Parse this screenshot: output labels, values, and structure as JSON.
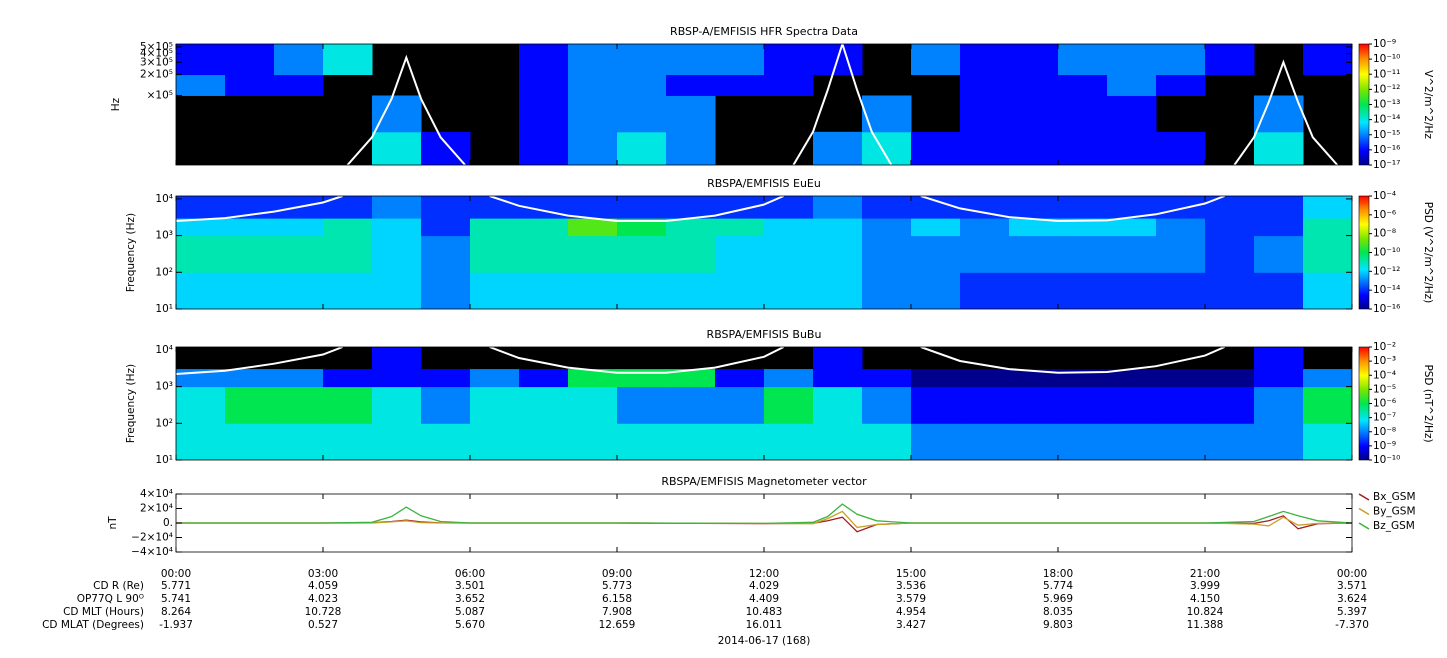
{
  "chart_data": [
    {
      "type": "heatmap",
      "title": "RBSP-A/EMFISIS  HFR Spectra Data",
      "ylabel": "Hz",
      "zlabel": "V^2/m^2/Hz",
      "xlim": [
        0,
        24
      ],
      "xticks": [
        0,
        3,
        6,
        9,
        12,
        15,
        18,
        21,
        24
      ],
      "log_y": true,
      "ylim": [
        10000,
        550000
      ],
      "yticks": [
        {
          "value": 100000,
          "label": "×10⁵"
        },
        {
          "value": 200000,
          "label": "2×10⁵"
        },
        {
          "value": 300000,
          "label": "3×10⁵"
        },
        {
          "value": 400000,
          "label": "4×10⁵"
        },
        {
          "value": 500000,
          "label": "5×10⁵"
        }
      ],
      "log_z": true,
      "zlim": [
        1e-17,
        1e-09
      ],
      "zticks": [
        {
          "value": 1e-17,
          "label": "10⁻¹⁷"
        },
        {
          "value": 1e-16,
          "label": "10⁻¹⁶"
        },
        {
          "value": 1e-15,
          "label": "10⁻¹⁵"
        },
        {
          "value": 1e-14,
          "label": "10⁻¹⁴"
        },
        {
          "value": 1e-13,
          "label": "10⁻¹³"
        },
        {
          "value": 1e-12,
          "label": "10⁻¹²"
        },
        {
          "value": 1e-11,
          "label": "10⁻¹¹"
        },
        {
          "value": 1e-10,
          "label": "10⁻¹⁰"
        },
        {
          "value": 1e-09,
          "label": "10⁻⁹"
        }
      ],
      "ybins": [
        10000,
        30000,
        100000,
        200000,
        550000
      ],
      "z": [
        [
          null,
          null,
          null,
          null,
          1e-14,
          1e-16,
          null,
          1e-16,
          1e-15,
          1e-14,
          1e-15,
          null,
          null,
          1e-15,
          1e-14,
          1e-16,
          1e-16,
          1e-16,
          1e-16,
          1e-16,
          1e-16,
          null,
          1e-14,
          null
        ],
        [
          null,
          null,
          null,
          null,
          1e-15,
          null,
          null,
          1e-16,
          1e-15,
          1e-15,
          1e-15,
          null,
          null,
          null,
          1e-15,
          null,
          1e-16,
          1e-16,
          1e-16,
          1e-16,
          null,
          null,
          1e-15,
          null
        ],
        [
          1e-15,
          1e-16,
          1e-16,
          null,
          null,
          null,
          null,
          1e-16,
          1e-15,
          1e-15,
          1e-16,
          1e-16,
          1e-16,
          null,
          null,
          null,
          1e-16,
          1e-16,
          1e-16,
          1e-15,
          1e-16,
          null,
          null,
          null
        ],
        [
          1e-16,
          1e-16,
          1e-15,
          1e-14,
          null,
          null,
          null,
          1e-16,
          1e-15,
          1e-15,
          1e-15,
          1e-15,
          1e-16,
          1e-16,
          null,
          1e-15,
          1e-16,
          1e-16,
          1e-15,
          1e-15,
          1e-15,
          1e-16,
          null,
          1e-16
        ]
      ],
      "curve": {
        "color": "#ffffff",
        "x": [
          3.5,
          4,
          4.4,
          4.7,
          5,
          5.4,
          5.9,
          null,
          12.6,
          13,
          13.3,
          13.6,
          13.9,
          14.2,
          14.6,
          null,
          21.6,
          22,
          22.3,
          22.6,
          22.9,
          23.2,
          23.7
        ],
        "values": [
          10000,
          25000,
          90000,
          350000,
          90000,
          25000,
          10000,
          null,
          10000,
          30000,
          120000,
          550000,
          120000,
          30000,
          10000,
          null,
          10000,
          25000,
          80000,
          300000,
          80000,
          25000,
          10000
        ]
      }
    },
    {
      "type": "heatmap",
      "title": "RBSPA/EMFISIS  EuEu",
      "ylabel": "Frequency (Hz)",
      "zlabel": "PSD (V^2/m^2/Hz)",
      "xlim": [
        0,
        24
      ],
      "xticks": [
        0,
        3,
        6,
        9,
        12,
        15,
        18,
        21,
        24
      ],
      "log_y": true,
      "ylim": [
        10,
        12000
      ],
      "yticks": [
        {
          "value": 10,
          "label": "10¹"
        },
        {
          "value": 100,
          "label": "10²"
        },
        {
          "value": 1000,
          "label": "10³"
        },
        {
          "value": 10000,
          "label": "10⁴"
        }
      ],
      "log_z": true,
      "zlim": [
        1e-16,
        0.0001
      ],
      "zticks": [
        {
          "value": 1e-16,
          "label": "10⁻¹⁶"
        },
        {
          "value": 1e-14,
          "label": "10⁻¹⁴"
        },
        {
          "value": 1e-12,
          "label": "10⁻¹²"
        },
        {
          "value": 1e-10,
          "label": "10⁻¹⁰"
        },
        {
          "value": 1e-08,
          "label": "10⁻⁸"
        },
        {
          "value": 1e-06,
          "label": "10⁻⁶"
        },
        {
          "value": 0.0001,
          "label": "10⁻⁴"
        }
      ],
      "ybins": [
        10,
        100,
        1000,
        3000,
        12000
      ],
      "z": [
        [
          1e-12,
          1e-12,
          1e-12,
          1e-12,
          1e-12,
          1e-13,
          1e-12,
          1e-12,
          1e-12,
          1e-12,
          1e-12,
          1e-12,
          1e-12,
          1e-12,
          1e-13,
          1e-13,
          1e-14,
          1e-14,
          1e-14,
          1e-14,
          1e-14,
          1e-14,
          1e-14,
          1e-12
        ],
        [
          1e-11,
          1e-11,
          1e-11,
          1e-11,
          1e-12,
          1e-13,
          1e-11,
          1e-11,
          1e-11,
          1e-11,
          1e-11,
          1e-12,
          1e-12,
          1e-12,
          1e-13,
          1e-13,
          1e-13,
          1e-13,
          1e-13,
          1e-13,
          1e-13,
          1e-14,
          1e-13,
          1e-11
        ],
        [
          1e-12,
          1e-12,
          1e-12,
          1e-11,
          1e-12,
          1e-14,
          1e-11,
          1e-11,
          1e-09,
          1e-10,
          1e-11,
          1e-11,
          1e-12,
          1e-12,
          1e-13,
          1e-12,
          1e-13,
          1e-12,
          1e-12,
          1e-12,
          1e-13,
          1e-14,
          1e-14,
          1e-11
        ],
        [
          1e-14,
          1e-14,
          1e-14,
          1e-14,
          1e-13,
          1e-14,
          1e-14,
          1e-14,
          1e-14,
          1e-14,
          1e-14,
          1e-14,
          1e-14,
          1e-13,
          1e-14,
          1e-14,
          1e-14,
          1e-14,
          1e-14,
          1e-14,
          1e-14,
          1e-14,
          1e-14,
          1e-12
        ]
      ],
      "curve": {
        "color": "#ffffff",
        "x": [
          0,
          1,
          2,
          3,
          3.4,
          null,
          6.4,
          7,
          8,
          9,
          10,
          11,
          12,
          12.4,
          null,
          15.2,
          16,
          17,
          18,
          19,
          20,
          21,
          21.4
        ],
        "values": [
          2500,
          3000,
          4500,
          8000,
          12000,
          null,
          12000,
          6500,
          3500,
          2500,
          2500,
          3500,
          7000,
          12000,
          null,
          12000,
          5500,
          3200,
          2500,
          2600,
          3800,
          7500,
          12000
        ]
      }
    },
    {
      "type": "heatmap",
      "title": "RBSPA/EMFISIS  BuBu",
      "ylabel": "Frequency (Hz)",
      "zlabel": "PSD (nT^2/Hz)",
      "xlim": [
        0,
        24
      ],
      "xticks": [
        0,
        3,
        6,
        9,
        12,
        15,
        18,
        21,
        24
      ],
      "log_y": true,
      "ylim": [
        10,
        12000
      ],
      "yticks": [
        {
          "value": 10,
          "label": "10¹"
        },
        {
          "value": 100,
          "label": "10²"
        },
        {
          "value": 1000,
          "label": "10³"
        },
        {
          "value": 10000,
          "label": "10⁴"
        }
      ],
      "log_z": true,
      "zlim": [
        1e-10,
        0.01
      ],
      "zticks": [
        {
          "value": 1e-10,
          "label": "10⁻¹⁰"
        },
        {
          "value": 1e-09,
          "label": "10⁻⁹"
        },
        {
          "value": 1e-08,
          "label": "10⁻⁸"
        },
        {
          "value": 1e-07,
          "label": "10⁻⁷"
        },
        {
          "value": 1e-06,
          "label": "10⁻⁶"
        },
        {
          "value": 1e-05,
          "label": "10⁻⁵"
        },
        {
          "value": 0.0001,
          "label": "10⁻⁴"
        },
        {
          "value": 0.001,
          "label": "10⁻³"
        },
        {
          "value": 0.01,
          "label": "10⁻²"
        }
      ],
      "ybins": [
        10,
        100,
        1000,
        3000,
        12000
      ],
      "z": [
        [
          1e-07,
          1e-07,
          1e-07,
          1e-07,
          1e-07,
          1e-07,
          1e-07,
          1e-07,
          1e-07,
          1e-07,
          1e-07,
          1e-07,
          1e-07,
          1e-07,
          1e-07,
          1e-08,
          1e-08,
          1e-08,
          1e-08,
          1e-08,
          1e-08,
          1e-08,
          1e-08,
          1e-07
        ],
        [
          1e-07,
          1e-06,
          1e-06,
          1e-06,
          1e-07,
          1e-08,
          1e-07,
          1e-07,
          1e-07,
          1e-08,
          1e-08,
          1e-08,
          1e-06,
          1e-07,
          1e-08,
          1e-09,
          1e-09,
          1e-09,
          1e-09,
          1e-09,
          1e-09,
          1e-09,
          1e-08,
          1e-06
        ],
        [
          1e-08,
          1e-08,
          1e-08,
          1e-09,
          1e-09,
          1e-09,
          1e-08,
          1e-09,
          1e-06,
          1e-06,
          1e-06,
          1e-09,
          1e-08,
          1e-09,
          1e-09,
          1e-10,
          1e-10,
          1e-10,
          1e-10,
          1e-10,
          1e-10,
          1e-10,
          1e-09,
          1e-08
        ],
        [
          null,
          null,
          null,
          null,
          1e-09,
          null,
          null,
          null,
          null,
          null,
          null,
          null,
          null,
          1e-09,
          null,
          null,
          null,
          null,
          null,
          null,
          null,
          null,
          1e-09,
          null
        ]
      ],
      "curve": {
        "color": "#ffffff",
        "x": [
          0,
          1,
          2,
          3,
          3.4,
          null,
          6.4,
          7,
          8,
          9,
          10,
          11,
          12,
          12.4,
          null,
          15.2,
          16,
          17,
          18,
          19,
          20,
          21,
          21.4
        ],
        "values": [
          2200,
          2700,
          4200,
          7500,
          12000,
          null,
          12000,
          6000,
          3300,
          2400,
          2400,
          3300,
          6500,
          12000,
          null,
          12000,
          5000,
          3000,
          2400,
          2500,
          3600,
          7000,
          12000
        ]
      }
    },
    {
      "type": "line",
      "title": "RBSPA/EMFISIS  Magnetometer vector",
      "ylabel": "nT",
      "xlabel": "2014-06-17 (168)",
      "xlim": [
        0,
        24
      ],
      "xticks": [
        {
          "value": 0,
          "label": "00:00"
        },
        {
          "value": 3,
          "label": "03:00"
        },
        {
          "value": 6,
          "label": "06:00"
        },
        {
          "value": 9,
          "label": "09:00"
        },
        {
          "value": 12,
          "label": "12:00"
        },
        {
          "value": 15,
          "label": "15:00"
        },
        {
          "value": 18,
          "label": "18:00"
        },
        {
          "value": 21,
          "label": "21:00"
        },
        {
          "value": 24,
          "label": "00:00"
        }
      ],
      "ylim": [
        -40000,
        40000
      ],
      "yticks": [
        {
          "value": -40000,
          "label": "−4×10⁴"
        },
        {
          "value": -20000,
          "label": "−2×10⁴"
        },
        {
          "value": 0,
          "label": "0."
        },
        {
          "value": 20000,
          "label": "2×10⁴"
        },
        {
          "value": 40000,
          "label": "4×10⁴"
        }
      ],
      "x": [
        0,
        3,
        4,
        4.4,
        4.7,
        5,
        5.4,
        6,
        9,
        12,
        13,
        13.3,
        13.6,
        13.9,
        14.3,
        15,
        18,
        21,
        22,
        22.3,
        22.6,
        22.9,
        23.3,
        24
      ],
      "series": [
        {
          "name": "Bx_GSM",
          "color": "#a0201c",
          "values": [
            0,
            0,
            300,
            2000,
            4000,
            1500,
            200,
            0,
            0,
            -800,
            -500,
            3000,
            8000,
            -12000,
            -2000,
            0,
            0,
            0,
            -500,
            3000,
            10000,
            -8000,
            -1000,
            0
          ]
        },
        {
          "name": "By_GSM",
          "color": "#c8a028",
          "values": [
            0,
            0,
            0,
            1500,
            3000,
            500,
            0,
            0,
            0,
            -500,
            -1000,
            6000,
            16000,
            -6000,
            -2000,
            0,
            0,
            0,
            -1500,
            -4000,
            8000,
            -3000,
            -500,
            0
          ]
        },
        {
          "name": "Bz_GSM",
          "color": "#3cb43c",
          "values": [
            0,
            0,
            1000,
            9000,
            22000,
            10000,
            2000,
            0,
            0,
            -500,
            1000,
            9000,
            26000,
            12000,
            3000,
            0,
            0,
            0,
            2000,
            9000,
            16000,
            10000,
            3000,
            0
          ]
        }
      ]
    }
  ],
  "ephemeris": [
    {
      "label": "CD R (Re)",
      "values": [
        "5.771",
        "4.059",
        "3.501",
        "5.773",
        "4.029",
        "3.536",
        "5.774",
        "3.999",
        "3.571"
      ]
    },
    {
      "label": "OP77Q L 90ᴼ",
      "values": [
        "5.741",
        "4.023",
        "3.652",
        "6.158",
        "4.409",
        "3.579",
        "5.969",
        "4.150",
        "3.624"
      ]
    },
    {
      "label": "CD MLT (Hours)",
      "values": [
        "8.264",
        "10.728",
        "5.087",
        "7.908",
        "10.483",
        "4.954",
        "8.035",
        "10.824",
        "5.397"
      ]
    },
    {
      "label": "CD MLAT (Degrees)",
      "values": [
        "-1.937",
        "0.527",
        "5.670",
        "12.659",
        "16.011",
        "3.427",
        "9.803",
        "11.388",
        "-7.370"
      ]
    }
  ]
}
